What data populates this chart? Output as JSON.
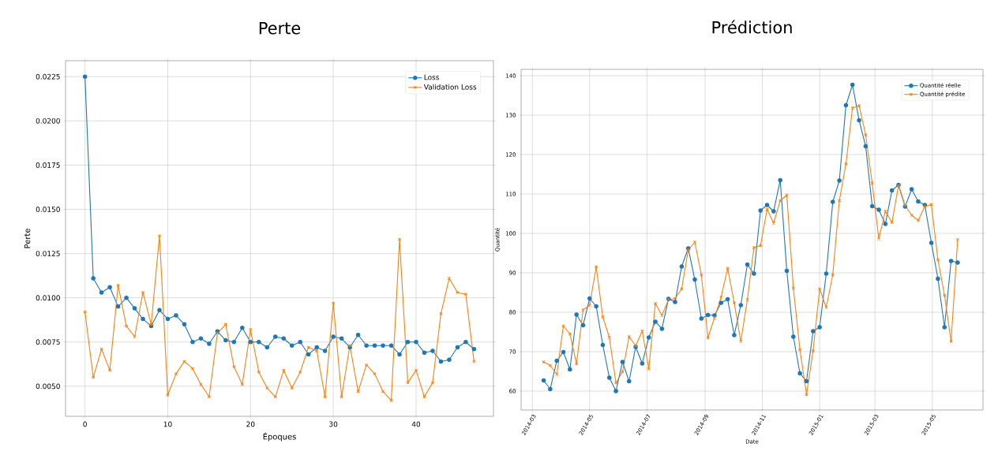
{
  "chart_data": [
    {
      "type": "line",
      "title": "Perte",
      "xlabel": "Époques",
      "ylabel": "Perte",
      "x": [
        0,
        1,
        2,
        3,
        4,
        5,
        6,
        7,
        8,
        9,
        10,
        11,
        12,
        13,
        14,
        15,
        16,
        17,
        18,
        19,
        20,
        21,
        22,
        23,
        24,
        25,
        26,
        27,
        28,
        29,
        30,
        31,
        32,
        33,
        34,
        35,
        36,
        37,
        38,
        39,
        40,
        41,
        42,
        43,
        44,
        45,
        46,
        47
      ],
      "series": [
        {
          "name": "Loss",
          "color": "#1f77b4",
          "marker": "circle",
          "values": [
            0.0225,
            0.0111,
            0.0103,
            0.0106,
            0.0095,
            0.01,
            0.0094,
            0.0088,
            0.0084,
            0.0093,
            0.0088,
            0.009,
            0.0085,
            0.0075,
            0.0077,
            0.0074,
            0.0081,
            0.0076,
            0.0075,
            0.0083,
            0.0075,
            0.0075,
            0.0072,
            0.0078,
            0.0077,
            0.0073,
            0.0075,
            0.0068,
            0.0072,
            0.007,
            0.0078,
            0.0077,
            0.0072,
            0.0079,
            0.0073,
            0.0073,
            0.0073,
            0.0073,
            0.0068,
            0.0075,
            0.0075,
            0.0069,
            0.007,
            0.0064,
            0.0065,
            0.0072,
            0.0075,
            0.0071
          ]
        },
        {
          "name": "Validation Loss",
          "color": "#ff7f0e",
          "marker": "cross",
          "values": [
            0.0092,
            0.0055,
            0.0071,
            0.0059,
            0.0107,
            0.0084,
            0.0078,
            0.0103,
            0.0085,
            0.0135,
            0.0045,
            0.0057,
            0.0064,
            0.006,
            0.0051,
            0.0044,
            0.008,
            0.0085,
            0.0061,
            0.0051,
            0.0082,
            0.0058,
            0.0049,
            0.0044,
            0.0059,
            0.0049,
            0.0058,
            0.0072,
            0.007,
            0.0044,
            0.0097,
            0.0044,
            0.0073,
            0.0047,
            0.0062,
            0.0057,
            0.0047,
            0.0042,
            0.0133,
            0.0052,
            0.0059,
            0.0044,
            0.0052,
            0.0091,
            0.0111,
            0.0103,
            0.0102,
            0.0064
          ]
        }
      ],
      "xlim": [
        -2.35,
        49.35
      ],
      "ylim": [
        0.0033,
        0.0234
      ],
      "xticks": [
        0,
        10,
        20,
        30,
        40
      ],
      "yticks": [
        {
          "value": 0.005,
          "label": "0.0050"
        },
        {
          "value": 0.0075,
          "label": "0.0075"
        },
        {
          "value": 0.01,
          "label": "0.0100"
        },
        {
          "value": 0.0125,
          "label": "0.0125"
        },
        {
          "value": 0.015,
          "label": "0.0150"
        },
        {
          "value": 0.0175,
          "label": "0.0175"
        },
        {
          "value": 0.02,
          "label": "0.0200"
        },
        {
          "value": 0.0225,
          "label": "0.0225"
        }
      ],
      "grid": true,
      "legend": "top right",
      "line_style": "solid"
    },
    {
      "type": "line",
      "title": "Prédiction",
      "xlabel": "Date",
      "ylabel": "Quantité",
      "x": [
        "2014-03-13",
        "2014-03-20",
        "2014-03-27",
        "2014-04-03",
        "2014-04-10",
        "2014-04-17",
        "2014-04-24",
        "2014-05-01",
        "2014-05-08",
        "2014-05-15",
        "2014-05-22",
        "2014-05-29",
        "2014-06-05",
        "2014-06-12",
        "2014-06-19",
        "2014-06-26",
        "2014-07-03",
        "2014-07-10",
        "2014-07-17",
        "2014-07-24",
        "2014-07-31",
        "2014-08-07",
        "2014-08-14",
        "2014-08-21",
        "2014-08-28",
        "2014-09-04",
        "2014-09-11",
        "2014-09-18",
        "2014-09-25",
        "2014-10-02",
        "2014-10-09",
        "2014-10-16",
        "2014-10-23",
        "2014-10-30",
        "2014-11-06",
        "2014-11-13",
        "2014-11-20",
        "2014-11-27",
        "2014-12-04",
        "2014-12-11",
        "2014-12-18",
        "2014-12-25",
        "2015-01-01",
        "2015-01-08",
        "2015-01-15",
        "2015-01-22",
        "2015-01-29",
        "2015-02-05",
        "2015-02-12",
        "2015-02-19",
        "2015-02-26",
        "2015-03-05",
        "2015-03-12",
        "2015-03-19",
        "2015-03-26",
        "2015-04-02",
        "2015-04-09",
        "2015-04-16",
        "2015-04-23",
        "2015-04-30",
        "2015-05-07",
        "2015-05-14",
        "2015-05-21",
        "2015-05-28"
      ],
      "series": [
        {
          "name": "Quantité réelle",
          "color": "#1f77b4",
          "marker": "circle",
          "values": [
            62.7,
            60.5,
            67.7,
            69.9,
            65.5,
            79.4,
            76.7,
            83.5,
            81.5,
            71.7,
            63.4,
            60.0,
            67.4,
            62.5,
            71.2,
            67.0,
            73.6,
            77.6,
            75.8,
            83.4,
            82.6,
            91.6,
            96.2,
            88.3,
            78.4,
            79.3,
            79.2,
            82.4,
            83.3,
            74.2,
            81.8,
            92.1,
            89.8,
            105.8,
            107.2,
            105.6,
            113.5,
            90.5,
            73.8,
            64.5,
            62.5,
            75.2,
            76.2,
            89.8,
            108.0,
            113.4,
            132.5,
            137.7,
            128.7,
            122.1,
            106.9,
            106.0,
            102.4,
            110.9,
            112.3,
            106.8,
            111.2,
            108.1,
            107.2,
            97.6,
            88.5,
            76.2,
            93.0,
            92.6
          ]
        },
        {
          "name": "Quantité prédite",
          "color": "#ff7f0e",
          "marker": "cross",
          "values": [
            67.4,
            66.5,
            64.2,
            76.5,
            74.5,
            66.9,
            80.6,
            81.8,
            91.5,
            78.8,
            73.6,
            62.1,
            64.9,
            73.8,
            71.5,
            75.2,
            65.7,
            82.2,
            79.2,
            83.2,
            83.5,
            85.9,
            95.8,
            97.8,
            89.5,
            73.5,
            78.6,
            83.8,
            91.1,
            82.4,
            72.6,
            83.2,
            96.4,
            96.9,
            106.1,
            102.6,
            108.3,
            109.7,
            86.1,
            70.5,
            59.1,
            70.2,
            85.9,
            81.2,
            89.5,
            108.3,
            117.6,
            131.8,
            132.4,
            125.0,
            112.7,
            98.6,
            105.6,
            102.8,
            112.1,
            107.1,
            104.6,
            103.3,
            106.8,
            107.3,
            93.3,
            84.3,
            72.6,
            98.4
          ]
        }
      ],
      "xlim": [
        "2014-02-17",
        "2015-06-24"
      ],
      "ylim": [
        55.2,
        141.6
      ],
      "xticks": [
        "2014-03",
        "2014-05",
        "2014-07",
        "2014-09",
        "2014-11",
        "2015-01",
        "2015-03",
        "2015-05"
      ],
      "yticks": [
        60,
        70,
        80,
        90,
        100,
        110,
        120,
        130,
        140
      ],
      "grid": true,
      "legend": "top right",
      "line_style": "solid"
    }
  ]
}
